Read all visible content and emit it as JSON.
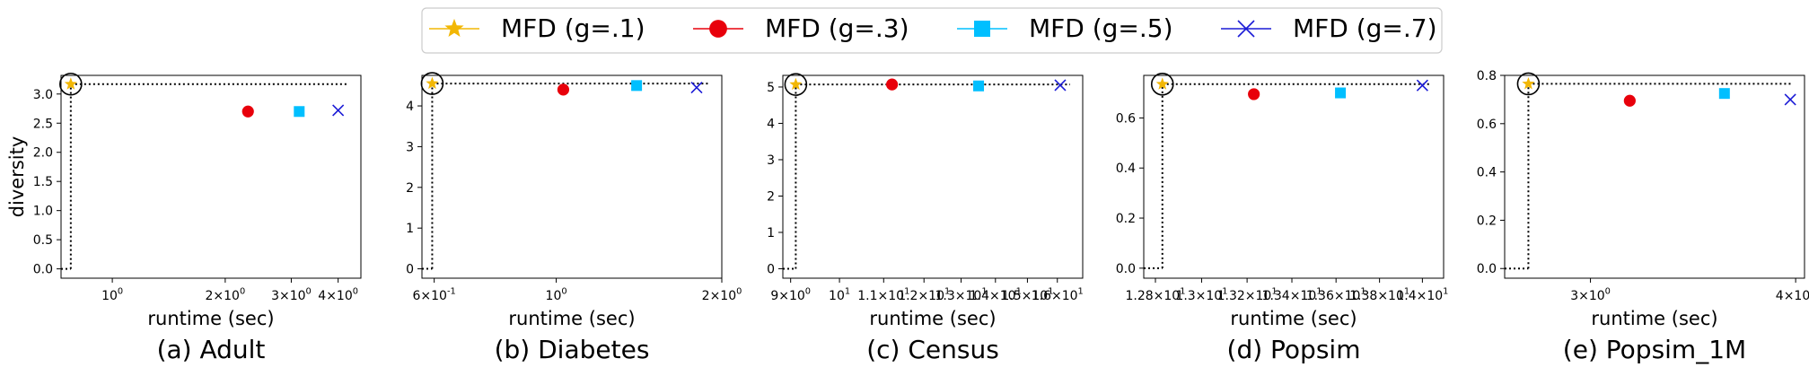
{
  "legend": [
    {
      "label": "MFD (g=.1)",
      "color": "#f2b705",
      "marker": "star"
    },
    {
      "label": "MFD (g=.3)",
      "color": "#e8000b",
      "marker": "circle"
    },
    {
      "label": "MFD (g=.5)",
      "color": "#00bfff",
      "marker": "square"
    },
    {
      "label": "MFD (g=.7)",
      "color": "#1a1ad6",
      "marker": "x"
    }
  ],
  "chart_data": [
    {
      "type": "scatter",
      "caption": "(a) Adult",
      "xlabel": "runtime (sec)",
      "ylabel": "diversity",
      "xscale": "log",
      "xlim": [
        0.73,
        4.6
      ],
      "ylim": [
        -0.16,
        3.32
      ],
      "xticks": [
        {
          "v": 1,
          "label": "10^0"
        },
        {
          "v": 2,
          "label": "2×10^0"
        },
        {
          "v": 3,
          "label": "3×10^0"
        },
        {
          "v": 4,
          "label": "4×10^0"
        }
      ],
      "yticks": [
        0,
        0.5,
        1.0,
        1.5,
        2.0,
        2.5,
        3.0
      ],
      "ytick_labels": [
        "0.0",
        "0.5",
        "1.0",
        "1.5",
        "2.0",
        "2.5",
        "3.0"
      ],
      "ideal": {
        "x": 0.775,
        "y": 3.17
      },
      "series": [
        {
          "x": 0.775,
          "y": 3.17
        },
        {
          "x": 2.3,
          "y": 2.7
        },
        {
          "x": 3.15,
          "y": 2.7
        },
        {
          "x": 4.0,
          "y": 2.72
        }
      ]
    },
    {
      "type": "scatter",
      "caption": "(b) Diabetes",
      "xlabel": "runtime (sec)",
      "ylabel": "",
      "xscale": "log",
      "xlim": [
        0.57,
        2.0
      ],
      "ylim": [
        -0.23,
        4.75
      ],
      "xticks": [
        {
          "v": 0.6,
          "label": "6×10^-1"
        },
        {
          "v": 1,
          "label": "10^0"
        },
        {
          "v": 2,
          "label": "2×10^0"
        }
      ],
      "yticks": [
        0,
        1,
        2,
        3,
        4
      ],
      "ytick_labels": [
        "0",
        "1",
        "2",
        "3",
        "4"
      ],
      "ideal": {
        "x": 0.595,
        "y": 4.55
      },
      "series": [
        {
          "x": 0.595,
          "y": 4.55
        },
        {
          "x": 1.03,
          "y": 4.4
        },
        {
          "x": 1.4,
          "y": 4.5
        },
        {
          "x": 1.8,
          "y": 4.45
        }
      ]
    },
    {
      "type": "scatter",
      "caption": "(c) Census",
      "xlabel": "runtime (sec)",
      "ylabel": "",
      "xscale": "log",
      "xlim": [
        8.85,
        16.9
      ],
      "ylim": [
        -0.26,
        5.32
      ],
      "xticks": [
        {
          "v": 9,
          "label": "9×10^0"
        },
        {
          "v": 10,
          "label": "10^1"
        },
        {
          "v": 11,
          "label": "1.1×10^1"
        },
        {
          "v": 12,
          "label": "1.2×10^1"
        },
        {
          "v": 13,
          "label": "1.3×10^1"
        },
        {
          "v": 14,
          "label": "1.4×10^1"
        },
        {
          "v": 15,
          "label": "1.5×10^1"
        },
        {
          "v": 16,
          "label": "1.6×10^1"
        }
      ],
      "yticks": [
        0,
        1,
        2,
        3,
        4,
        5
      ],
      "ytick_labels": [
        "0",
        "1",
        "2",
        "3",
        "4",
        "5"
      ],
      "ideal": {
        "x": 9.1,
        "y": 5.07
      },
      "series": [
        {
          "x": 9.1,
          "y": 5.07
        },
        {
          "x": 11.2,
          "y": 5.07
        },
        {
          "x": 13.5,
          "y": 5.03
        },
        {
          "x": 16.1,
          "y": 5.05
        }
      ]
    },
    {
      "type": "scatter",
      "caption": "(d) Popsim",
      "xlabel": "runtime (sec)",
      "ylabel": "",
      "xscale": "log",
      "xlim": [
        12.75,
        14.1
      ],
      "ylim": [
        -0.04,
        0.77
      ],
      "xticks": [
        {
          "v": 12.8,
          "label": "1.28×10^1"
        },
        {
          "v": 13.0,
          "label": "1.3×10^1"
        },
        {
          "v": 13.2,
          "label": "1.32×10^1"
        },
        {
          "v": 13.4,
          "label": "1.34×10^1"
        },
        {
          "v": 13.6,
          "label": "1.36×10^1"
        },
        {
          "v": 13.8,
          "label": "1.38×10^1"
        },
        {
          "v": 14.0,
          "label": "1.4×10^1"
        }
      ],
      "yticks": [
        0,
        0.2,
        0.4,
        0.6
      ],
      "ytick_labels": [
        "0.0",
        "0.2",
        "0.4",
        "0.6"
      ],
      "ideal": {
        "x": 12.83,
        "y": 0.735
      },
      "series": [
        {
          "x": 12.83,
          "y": 0.735
        },
        {
          "x": 13.23,
          "y": 0.695
        },
        {
          "x": 13.62,
          "y": 0.7
        },
        {
          "x": 14.0,
          "y": 0.73
        }
      ]
    },
    {
      "type": "scatter",
      "caption": "(e) Popsim_1M",
      "xlabel": "runtime (sec)",
      "ylabel": "",
      "xscale": "log",
      "xlim": [
        2.66,
        4.05
      ],
      "ylim": [
        -0.04,
        0.8
      ],
      "xticks": [
        {
          "v": 3,
          "label": "3×10^0"
        },
        {
          "v": 4,
          "label": "4×10^0"
        }
      ],
      "yticks": [
        0,
        0.2,
        0.4,
        0.6,
        0.8
      ],
      "ytick_labels": [
        "0.0",
        "0.2",
        "0.4",
        "0.6",
        "0.8"
      ],
      "ideal": {
        "x": 2.75,
        "y": 0.765
      },
      "series": [
        {
          "x": 2.75,
          "y": 0.765
        },
        {
          "x": 3.17,
          "y": 0.695
        },
        {
          "x": 3.62,
          "y": 0.725
        },
        {
          "x": 3.97,
          "y": 0.7
        }
      ]
    }
  ]
}
